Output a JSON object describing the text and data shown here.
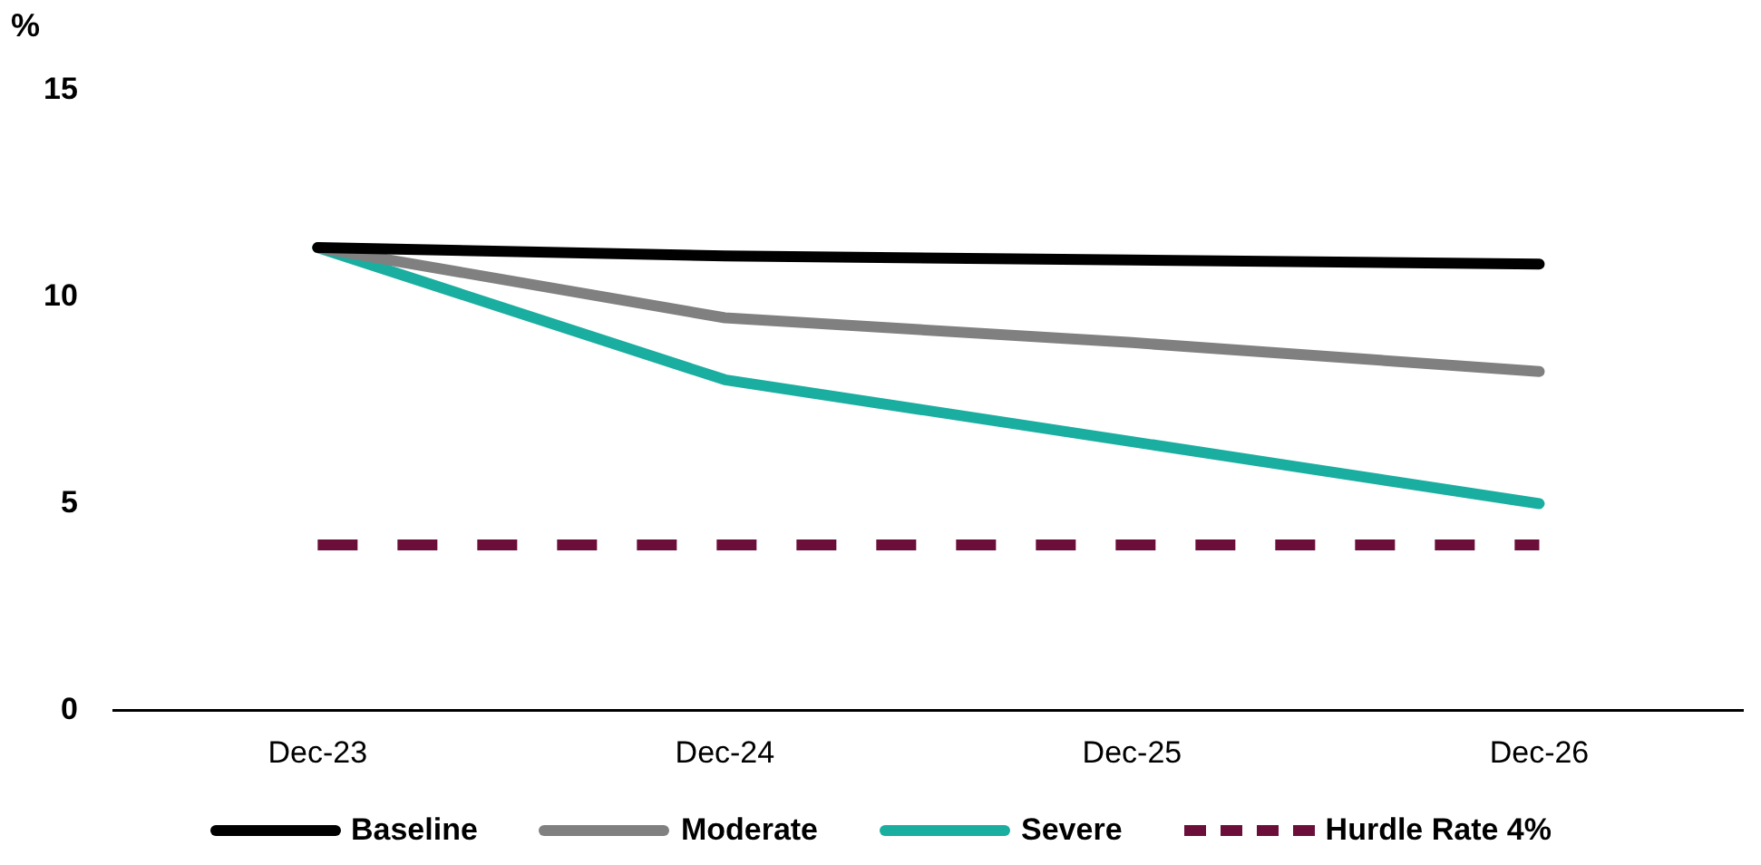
{
  "chart_data": {
    "type": "line",
    "ylabel": "%",
    "categories": [
      "Dec-23",
      "Dec-24",
      "Dec-25",
      "Dec-26"
    ],
    "series": [
      {
        "name": "Baseline",
        "color": "#000000",
        "values": [
          11.2,
          11.0,
          10.9,
          10.8
        ]
      },
      {
        "name": "Moderate",
        "color": "#808080",
        "values": [
          11.2,
          9.5,
          8.9,
          8.2
        ]
      },
      {
        "name": "Severe",
        "color": "#1aaea0",
        "values": [
          11.2,
          8.0,
          6.5,
          5.0
        ]
      },
      {
        "name": "Hurdle Rate 4%",
        "color": "#6b0f3a",
        "values": [
          4,
          4,
          4,
          4
        ],
        "line_style": "dashed"
      }
    ],
    "ylim": [
      0,
      15
    ],
    "yticks": [
      0,
      5,
      10,
      15
    ],
    "grid": false,
    "legend": "bottom",
    "marker": "none",
    "line_style": "solid"
  }
}
